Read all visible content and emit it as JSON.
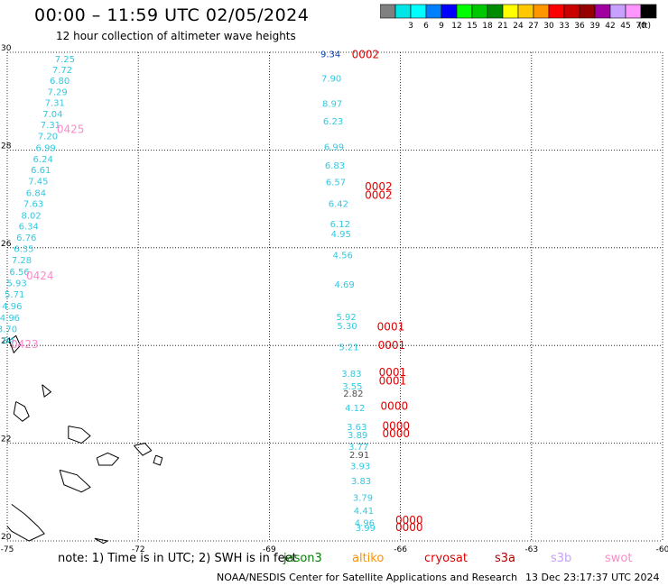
{
  "header": {
    "title": "00:00 – 11:59 UTC 02/05/2024",
    "subtitle": "12 hour collection of altimeter wave heights"
  },
  "colorbar": {
    "unit": "(ft)",
    "bins": [
      {
        "label": "",
        "color": "#808080"
      },
      {
        "label": "3",
        "color": "#00e5e5"
      },
      {
        "label": "6",
        "color": "#00ffff"
      },
      {
        "label": "9",
        "color": "#0080ff"
      },
      {
        "label": "12",
        "color": "#0000ff"
      },
      {
        "label": "15",
        "color": "#00ff00"
      },
      {
        "label": "18",
        "color": "#00c800"
      },
      {
        "label": "21",
        "color": "#008c00"
      },
      {
        "label": "24",
        "color": "#ffff00"
      },
      {
        "label": "27",
        "color": "#ffc800"
      },
      {
        "label": "30",
        "color": "#ff9600"
      },
      {
        "label": "33",
        "color": "#ff0000"
      },
      {
        "label": "36",
        "color": "#c80000"
      },
      {
        "label": "39",
        "color": "#960000"
      },
      {
        "label": "42",
        "color": "#a000a0"
      },
      {
        "label": "45",
        "color": "#c8a0ff"
      },
      {
        "label": "70",
        "color": "#ff96ff"
      },
      {
        "label": "",
        "color": "#000000"
      }
    ]
  },
  "map": {
    "lon_range": [
      -75,
      -60
    ],
    "lat_range": [
      20,
      30
    ],
    "lon_ticks": [
      "-75",
      "-72",
      "-69",
      "-66",
      "-63",
      "-60"
    ],
    "lat_ticks": [
      "30",
      "28",
      "26",
      "24",
      "22",
      "20"
    ],
    "track_a": {
      "color": "#33c8e0",
      "points": [
        {
          "lat": 29.8,
          "lon": -73.68,
          "v": "7.25"
        },
        {
          "lat": 29.58,
          "lon": -73.74,
          "v": "7.72"
        },
        {
          "lat": 29.35,
          "lon": -73.8,
          "v": "6.80"
        },
        {
          "lat": 29.12,
          "lon": -73.85,
          "v": "7.29"
        },
        {
          "lat": 28.9,
          "lon": -73.91,
          "v": "7.31"
        },
        {
          "lat": 28.67,
          "lon": -73.96,
          "v": "7.04"
        },
        {
          "lat": 28.45,
          "lon": -74.01,
          "v": "7.31"
        },
        {
          "lat": 28.22,
          "lon": -74.07,
          "v": "7.20"
        },
        {
          "lat": 27.98,
          "lon": -74.12,
          "v": "6.99"
        },
        {
          "lat": 27.75,
          "lon": -74.18,
          "v": "6.24"
        },
        {
          "lat": 27.53,
          "lon": -74.23,
          "v": "6.61"
        },
        {
          "lat": 27.3,
          "lon": -74.29,
          "v": "7.45"
        },
        {
          "lat": 27.06,
          "lon": -74.34,
          "v": "6.84"
        },
        {
          "lat": 26.84,
          "lon": -74.4,
          "v": "7.63"
        },
        {
          "lat": 26.6,
          "lon": -74.45,
          "v": "8.02"
        },
        {
          "lat": 26.37,
          "lon": -74.51,
          "v": "6.34"
        },
        {
          "lat": 26.14,
          "lon": -74.56,
          "v": "6.76"
        },
        {
          "lat": 25.91,
          "lon": -74.62,
          "v": "6.35"
        },
        {
          "lat": 25.68,
          "lon": -74.67,
          "v": "7.28"
        },
        {
          "lat": 25.44,
          "lon": -74.72,
          "v": "6.56"
        },
        {
          "lat": 25.21,
          "lon": -74.78,
          "v": "5.93"
        },
        {
          "lat": 24.98,
          "lon": -74.83,
          "v": "5.71"
        },
        {
          "lat": 24.74,
          "lon": -74.89,
          "v": "4.96"
        },
        {
          "lat": 24.5,
          "lon": -74.94,
          "v": "4.96"
        },
        {
          "lat": 24.27,
          "lon": -75.0,
          "v": "3.70"
        },
        {
          "lat": 24.04,
          "lon": -75.06,
          "v": "3.84"
        }
      ]
    },
    "track_b": {
      "color": "#33c8e0",
      "points": [
        {
          "lat": 29.9,
          "lon": -67.6,
          "v": "9.34",
          "c": "#0040c0"
        },
        {
          "lat": 29.4,
          "lon": -67.58,
          "v": "7.90"
        },
        {
          "lat": 28.88,
          "lon": -67.56,
          "v": "8.97"
        },
        {
          "lat": 28.52,
          "lon": -67.54,
          "v": "6.23"
        },
        {
          "lat": 28.0,
          "lon": -67.52,
          "v": "6.99"
        },
        {
          "lat": 27.62,
          "lon": -67.5,
          "v": "6.83"
        },
        {
          "lat": 27.28,
          "lon": -67.48,
          "v": "6.57"
        },
        {
          "lat": 26.84,
          "lon": -67.42,
          "v": "6.42"
        },
        {
          "lat": 26.42,
          "lon": -67.38,
          "v": "6.12"
        },
        {
          "lat": 26.22,
          "lon": -67.36,
          "v": "4.95"
        },
        {
          "lat": 25.78,
          "lon": -67.32,
          "v": "4.56"
        },
        {
          "lat": 25.18,
          "lon": -67.28,
          "v": "4.69"
        },
        {
          "lat": 24.52,
          "lon": -67.24,
          "v": "5.92"
        },
        {
          "lat": 24.34,
          "lon": -67.22,
          "v": "5.30"
        },
        {
          "lat": 23.9,
          "lon": -67.18,
          "v": "5.21"
        },
        {
          "lat": 23.36,
          "lon": -67.12,
          "v": "3.83"
        },
        {
          "lat": 23.1,
          "lon": -67.1,
          "v": "3.55"
        },
        {
          "lat": 22.95,
          "lon": -67.08,
          "v": "2.82",
          "c": "#505050"
        },
        {
          "lat": 22.66,
          "lon": -67.04,
          "v": "4.12"
        },
        {
          "lat": 22.27,
          "lon": -67.0,
          "v": "3.63"
        },
        {
          "lat": 22.1,
          "lon": -66.98,
          "v": "3.89"
        },
        {
          "lat": 21.86,
          "lon": -66.96,
          "v": "3.77"
        },
        {
          "lat": 21.7,
          "lon": -66.94,
          "v": "2.91",
          "c": "#505050"
        },
        {
          "lat": 21.47,
          "lon": -66.92,
          "v": "3.93"
        },
        {
          "lat": 21.16,
          "lon": -66.9,
          "v": "3.83"
        },
        {
          "lat": 20.82,
          "lon": -66.86,
          "v": "3.79"
        },
        {
          "lat": 20.55,
          "lon": -66.84,
          "v": "4.41"
        },
        {
          "lat": 20.3,
          "lon": -66.82,
          "v": "4.96"
        },
        {
          "lat": 20.2,
          "lon": -66.8,
          "v": "3.99"
        }
      ]
    },
    "time_labels": [
      {
        "lat": 28.35,
        "lon": -73.55,
        "v": "0425",
        "c": "#ff88cc"
      },
      {
        "lat": 25.35,
        "lon": -74.25,
        "v": "0424",
        "c": "#ff88cc"
      },
      {
        "lat": 23.95,
        "lon": -74.6,
        "v": "0423",
        "c": "#ff88cc"
      },
      {
        "lat": 29.88,
        "lon": -66.8,
        "v": "0002",
        "c": "#e00000"
      },
      {
        "lat": 27.18,
        "lon": -66.5,
        "v": "0002",
        "c": "#e00000"
      },
      {
        "lat": 27.0,
        "lon": -66.5,
        "v": "0002",
        "c": "#e00000"
      },
      {
        "lat": 24.31,
        "lon": -66.22,
        "v": "0001",
        "c": "#e00000"
      },
      {
        "lat": 23.93,
        "lon": -66.2,
        "v": "0001",
        "c": "#e00000"
      },
      {
        "lat": 23.38,
        "lon": -66.18,
        "v": "0001",
        "c": "#e00000"
      },
      {
        "lat": 23.2,
        "lon": -66.18,
        "v": "0001",
        "c": "#e00000"
      },
      {
        "lat": 22.68,
        "lon": -66.14,
        "v": "0000",
        "c": "#e00000"
      },
      {
        "lat": 22.28,
        "lon": -66.1,
        "v": "0000",
        "c": "#e00000"
      },
      {
        "lat": 22.12,
        "lon": -66.1,
        "v": "0000",
        "c": "#e00000"
      },
      {
        "lat": 20.35,
        "lon": -65.8,
        "v": "0000",
        "c": "#e00000"
      },
      {
        "lat": 20.2,
        "lon": -65.8,
        "v": "0000",
        "c": "#e00000"
      }
    ]
  },
  "legend": {
    "note": "note:  1) Time is in UTC;  2) SWH is in feet",
    "satellites": [
      {
        "name": "jason3",
        "color": "#008000"
      },
      {
        "name": "altiko",
        "color": "#ff9000"
      },
      {
        "name": "cryosat",
        "color": "#e00000"
      },
      {
        "name": "s3a",
        "color": "#b00000"
      },
      {
        "name": "s3b",
        "color": "#c8a0ff"
      },
      {
        "name": "swot",
        "color": "#ff88cc"
      }
    ]
  },
  "footer": {
    "credit": "NOAA/NESDIS Center for Satellite Applications and Research",
    "timestamp": "13 Dec 23:17:37 UTC 2024"
  }
}
